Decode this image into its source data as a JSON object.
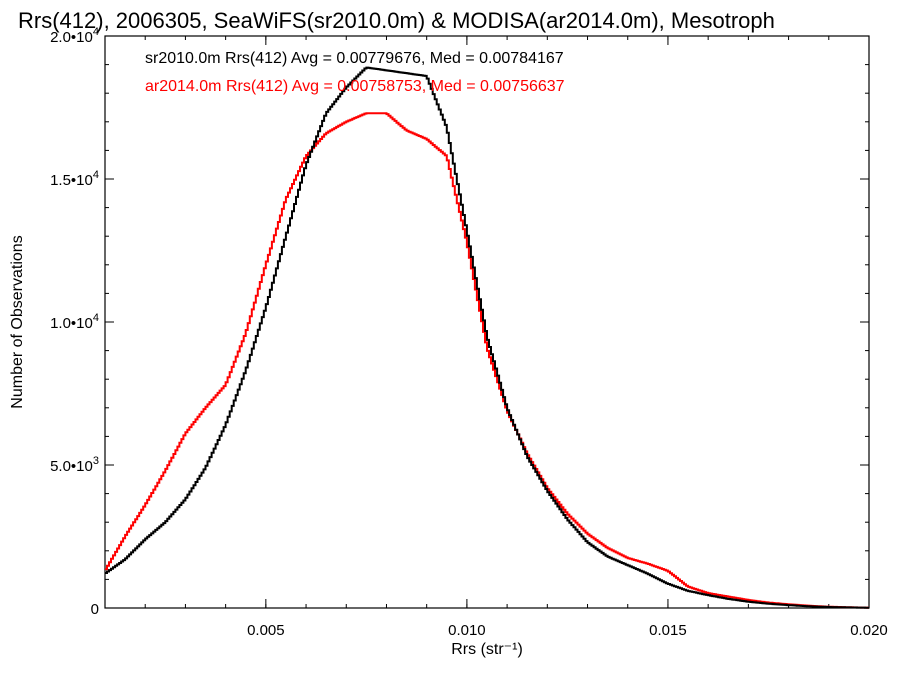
{
  "chart_data": {
    "type": "line",
    "title": "Rrs(412), 2006305, SeaWiFS(sr2010.0m) & MODISA(ar2014.0m), Mesotroph",
    "xlabel": "Rrs (str⁻¹)",
    "ylabel": "Number of Observations",
    "xlim": [
      0.001,
      0.02
    ],
    "ylim": [
      0,
      20000
    ],
    "x_ticks": [
      0.005,
      0.01,
      0.015,
      0.02
    ],
    "x_tick_labels": [
      "0.005",
      "0.010",
      "0.015",
      "0.020"
    ],
    "y_ticks": [
      0,
      5000,
      10000,
      15000,
      20000
    ],
    "y_tick_labels": [
      {
        "mantissa": "0",
        "exponent": ""
      },
      {
        "mantissa": "5.0•10",
        "exponent": "3"
      },
      {
        "mantissa": "1.0•10",
        "exponent": "4"
      },
      {
        "mantissa": "1.5•10",
        "exponent": "4"
      },
      {
        "mantissa": "2.0•10",
        "exponent": "4"
      }
    ],
    "annotations": [
      "sr2010.0m Rrs(412) Avg = 0.00779676, Med = 0.00784167",
      "ar2014.0m Rrs(412) Avg = 0.00758753, Med = 0.00756637"
    ],
    "series": [
      {
        "name": "sr2010.0m",
        "color": "#000000",
        "x": [
          0.001,
          0.0015,
          0.002,
          0.0025,
          0.003,
          0.0035,
          0.004,
          0.0045,
          0.005,
          0.0055,
          0.006,
          0.0065,
          0.007,
          0.0075,
          0.008,
          0.0085,
          0.009,
          0.0095,
          0.01,
          0.0105,
          0.011,
          0.0115,
          0.012,
          0.0125,
          0.013,
          0.0135,
          0.014,
          0.0145,
          0.015,
          0.0155,
          0.016,
          0.0165,
          0.017,
          0.0175,
          0.018,
          0.0185,
          0.019,
          0.0195,
          0.02
        ],
        "y": [
          1200,
          1700,
          2400,
          3000,
          3800,
          4900,
          6400,
          8300,
          10500,
          13000,
          15500,
          17300,
          18200,
          18900,
          18800,
          18700,
          18600,
          16800,
          13200,
          9500,
          7000,
          5300,
          4100,
          3100,
          2300,
          1800,
          1500,
          1200,
          850,
          600,
          450,
          320,
          220,
          150,
          100,
          60,
          35,
          20,
          10
        ]
      },
      {
        "name": "ar2014.0m",
        "color": "#ff0000",
        "x": [
          0.001,
          0.0015,
          0.002,
          0.0025,
          0.003,
          0.0035,
          0.004,
          0.0045,
          0.005,
          0.0055,
          0.006,
          0.0065,
          0.007,
          0.0075,
          0.008,
          0.0085,
          0.009,
          0.0095,
          0.01,
          0.0105,
          0.011,
          0.0115,
          0.012,
          0.0125,
          0.013,
          0.0135,
          0.014,
          0.0145,
          0.015,
          0.0155,
          0.016,
          0.0165,
          0.017,
          0.0175,
          0.018,
          0.0185,
          0.019,
          0.0195,
          0.02
        ],
        "y": [
          1300,
          2500,
          3600,
          4800,
          6100,
          7000,
          7800,
          9600,
          12000,
          14300,
          15800,
          16600,
          17000,
          17300,
          17300,
          16700,
          16400,
          15800,
          12800,
          9100,
          6900,
          5400,
          4200,
          3300,
          2600,
          2100,
          1750,
          1550,
          1300,
          750,
          520,
          400,
          280,
          190,
          130,
          80,
          45,
          25,
          10
        ]
      }
    ]
  }
}
